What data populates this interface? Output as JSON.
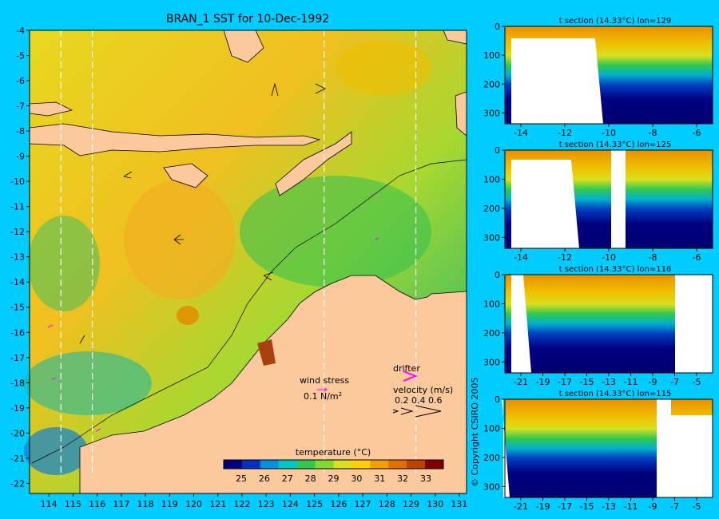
{
  "map": {
    "title": "BRAN_1 SST for 10-Dec-1992",
    "lon_ticks": [
      114,
      115,
      116,
      117,
      118,
      119,
      120,
      121,
      122,
      123,
      124,
      125,
      126,
      127,
      128,
      129,
      130,
      131
    ],
    "lat_ticks": [
      -4,
      -5,
      -6,
      -7,
      -8,
      -9,
      -10,
      -11,
      -12,
      -13,
      -14,
      -15,
      -16,
      -17,
      -18,
      -19,
      -20,
      -21,
      -22
    ],
    "section_lons": [
      114.5,
      115.8,
      125.4,
      129.2
    ],
    "colors": {
      "background": "#00ccff",
      "land": "#fcc99c"
    }
  },
  "legend": {
    "wind_stress_label": "wind stress",
    "wind_stress_value": "0.1 N/m",
    "wind_stress_exp": "2",
    "drifter_label": "drifter",
    "velocity_label": "velocity (m/s)",
    "velocity_values": "0.2 0.4 0.6",
    "drifter_color": "#ff00ff"
  },
  "colorbar": {
    "label": "temperature (°C)",
    "ticks": [
      "25",
      "26",
      "27",
      "28",
      "29",
      "30",
      "31",
      "32",
      "33"
    ],
    "colors": [
      "#000080",
      "#0030c0",
      "#0090e0",
      "#00c8c8",
      "#30c850",
      "#80d830",
      "#d8e020",
      "#ffd000",
      "#f0a000",
      "#e07000",
      "#c04000",
      "#800000"
    ]
  },
  "sections": [
    {
      "title": "t section (14.33°C) lon=129",
      "depth_ticks": [
        "0",
        "100",
        "200",
        "300"
      ],
      "x_ticks": [
        "-14",
        "-12",
        "-10",
        "-8",
        "-6"
      ]
    },
    {
      "title": "t section (14.33°C) lon=125",
      "depth_ticks": [
        "0",
        "100",
        "200",
        "300"
      ],
      "x_ticks": [
        "-14",
        "-12",
        "-10",
        "-8",
        "-6"
      ]
    },
    {
      "title": "t section (14.33°C) lon=116",
      "depth_ticks": [
        "0",
        "100",
        "200",
        "300"
      ],
      "x_ticks": [
        "-21",
        "-19",
        "-17",
        "-15",
        "-13",
        "-11",
        "-9",
        "-7",
        "-5"
      ]
    },
    {
      "title": "t section (14.33°C) lon=115",
      "depth_ticks": [
        "0",
        "100",
        "200",
        "300"
      ],
      "x_ticks": [
        "-21",
        "-19",
        "-17",
        "-15",
        "-13",
        "-11",
        "-9",
        "-7",
        "-5"
      ]
    }
  ],
  "copyright": "© Copyright CSIRO 2005"
}
